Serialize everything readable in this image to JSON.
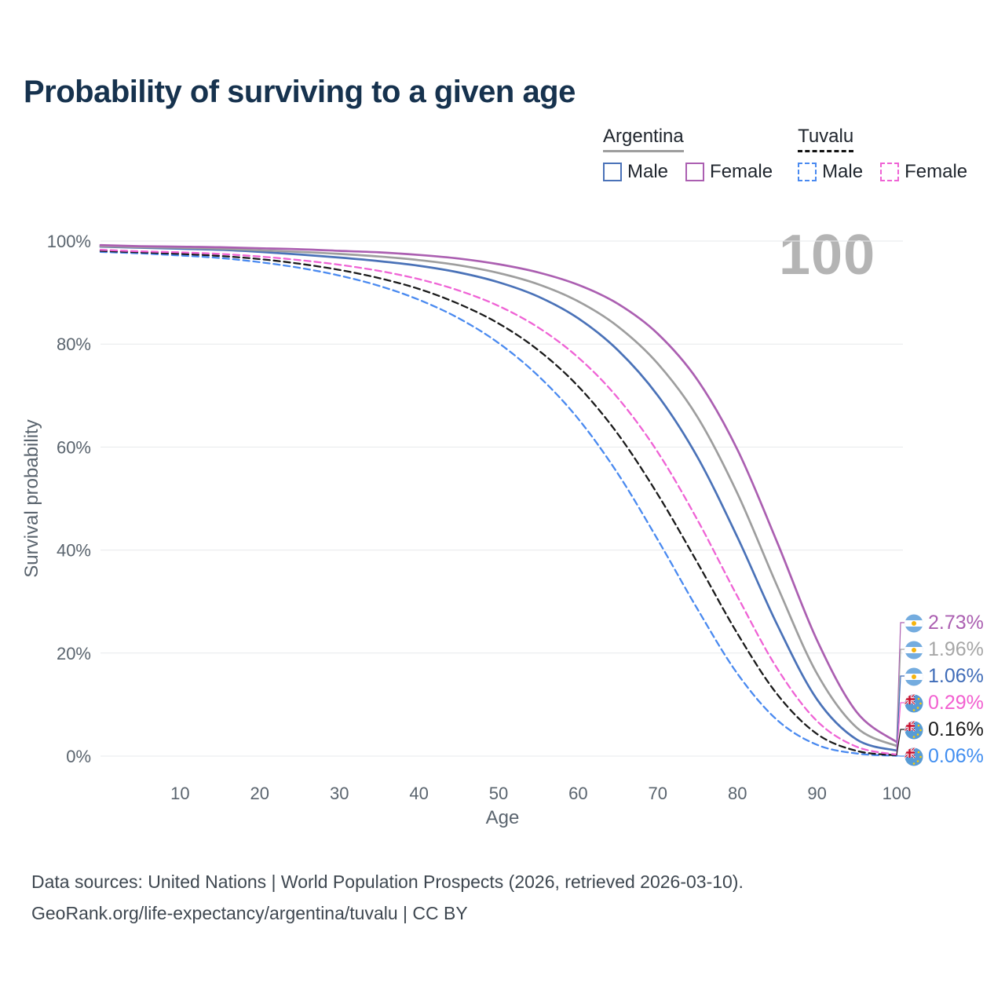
{
  "page": {
    "age_indicator": "100",
    "footer_line1": "Data sources: United Nations | World Population Prospects (2026, retrieved 2026-03-10).",
    "footer_line2": "GeoRank.org/life-expectancy/argentina/tuvalu | CC BY"
  },
  "legend": {
    "groups": [
      {
        "label": "Argentina",
        "line_style": "solid",
        "line_color": "#9e9e9e",
        "items": [
          {
            "label": "Male",
            "color": "#4a72b8",
            "dashed": false
          },
          {
            "label": "Female",
            "color": "#ab5fb1",
            "dashed": false
          }
        ]
      },
      {
        "label": "Tuvalu",
        "line_style": "dashed",
        "line_color": "#111111",
        "items": [
          {
            "label": "Male",
            "color": "#4a8af0",
            "dashed": true
          },
          {
            "label": "Female",
            "color": "#ef63d5",
            "dashed": true
          }
        ]
      }
    ]
  },
  "chart_data": {
    "type": "line",
    "title": "Probability of surviving to a given age",
    "xlabel": "Age",
    "ylabel": "Survival probability",
    "xlim": [
      0,
      100
    ],
    "ylim": [
      0,
      100
    ],
    "xticks": [
      10,
      20,
      30,
      40,
      50,
      60,
      70,
      80,
      90,
      100
    ],
    "yticks": [
      0,
      20,
      40,
      60,
      80,
      100
    ],
    "ytick_format": "percent",
    "grid": "horizontal",
    "legend_position": "top-right",
    "hover_age": 100,
    "ages": [
      0,
      5,
      10,
      15,
      20,
      25,
      30,
      35,
      40,
      45,
      50,
      55,
      60,
      65,
      70,
      75,
      80,
      85,
      90,
      95,
      100
    ],
    "series": [
      {
        "id": "argentina-female",
        "name": "Argentina Female",
        "country": "Argentina",
        "sex": "Female",
        "color": "#ab5fb1",
        "label_color": "#ab5fb1",
        "dashed": false,
        "flag": "argentina",
        "end_label": "2.73%",
        "values": [
          99.2,
          99.0,
          98.9,
          98.8,
          98.6,
          98.4,
          98.1,
          97.8,
          97.3,
          96.6,
          95.5,
          93.9,
          91.5,
          87.8,
          82.0,
          73.0,
          59.5,
          41.5,
          22.5,
          8.5,
          2.73
        ]
      },
      {
        "id": "argentina-both",
        "name": "Argentina Both sexes",
        "country": "Argentina",
        "sex": "Both",
        "color": "#9e9e9e",
        "label_color": "#a6a6a6",
        "dashed": false,
        "flag": "argentina",
        "end_label": "1.96%",
        "values": [
          99.0,
          98.8,
          98.7,
          98.5,
          98.2,
          97.9,
          97.5,
          97.0,
          96.3,
          95.3,
          93.8,
          91.6,
          88.3,
          83.4,
          76.2,
          65.8,
          51.0,
          33.0,
          16.0,
          5.5,
          1.96
        ]
      },
      {
        "id": "argentina-male",
        "name": "Argentina Male",
        "country": "Argentina",
        "sex": "Male",
        "color": "#4a72b8",
        "label_color": "#3f6cb8",
        "dashed": false,
        "flag": "argentina",
        "end_label": "1.06%",
        "values": [
          98.9,
          98.7,
          98.5,
          98.3,
          97.9,
          97.4,
          96.8,
          96.1,
          95.2,
          93.9,
          92.0,
          89.2,
          85.0,
          78.8,
          70.0,
          58.0,
          42.5,
          25.5,
          11.0,
          3.2,
          1.06
        ]
      },
      {
        "id": "tuvalu-female",
        "name": "Tuvalu Female",
        "country": "Tuvalu",
        "sex": "Female",
        "color": "#ef63d5",
        "label_color": "#f25fd0",
        "dashed": true,
        "flag": "tuvalu",
        "end_label": "0.29%",
        "values": [
          98.3,
          98.0,
          97.8,
          97.5,
          97.0,
          96.3,
          95.4,
          94.2,
          92.6,
          90.4,
          87.4,
          83.2,
          77.4,
          69.5,
          59.0,
          45.8,
          31.0,
          17.0,
          6.8,
          1.8,
          0.29
        ]
      },
      {
        "id": "tuvalu-both",
        "name": "Tuvalu Both sexes",
        "country": "Tuvalu",
        "sex": "Both",
        "color": "#1a1a1a",
        "label_color": "#1a1a1a",
        "dashed": true,
        "flag": "tuvalu",
        "end_label": "0.16%",
        "values": [
          98.1,
          97.8,
          97.5,
          97.1,
          96.5,
          95.6,
          94.4,
          92.8,
          90.7,
          87.8,
          84.0,
          78.8,
          71.8,
          62.5,
          50.8,
          37.5,
          23.8,
          12.0,
          4.3,
          1.0,
          0.16
        ]
      },
      {
        "id": "tuvalu-male",
        "name": "Tuvalu Male",
        "country": "Tuvalu",
        "sex": "Male",
        "color": "#4a8af0",
        "label_color": "#418ef0",
        "dashed": true,
        "flag": "tuvalu",
        "end_label": "0.06%",
        "values": [
          97.9,
          97.6,
          97.2,
          96.7,
          95.9,
          94.8,
          93.3,
          91.3,
          88.6,
          85.0,
          80.2,
          73.8,
          65.5,
          54.8,
          42.0,
          28.5,
          16.0,
          7.0,
          2.2,
          0.5,
          0.06
        ]
      }
    ]
  }
}
